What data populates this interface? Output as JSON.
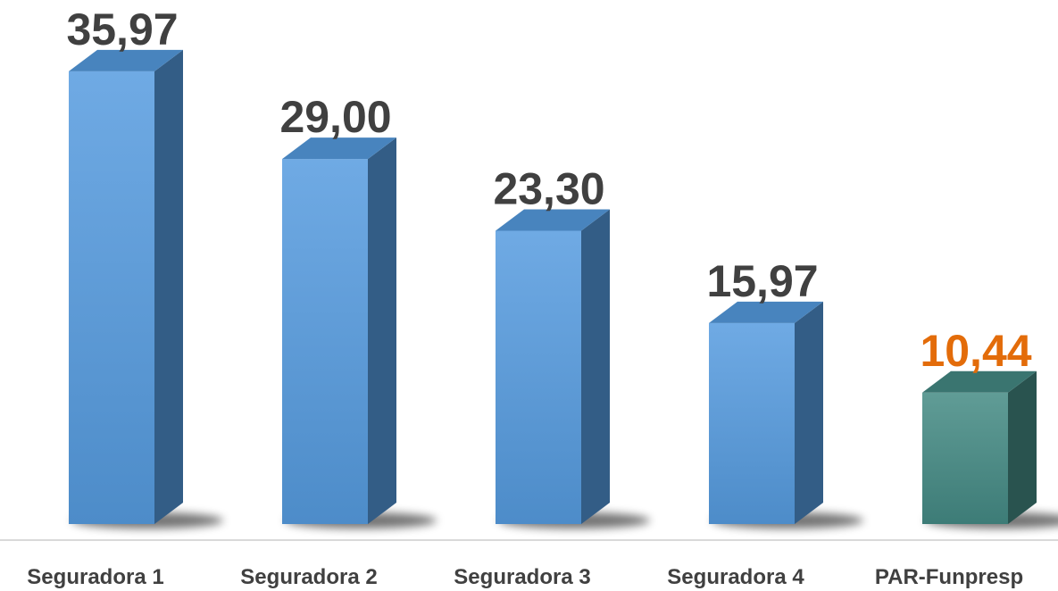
{
  "chart_data": {
    "type": "bar3d",
    "categories": [
      "Seguradora 1",
      "Seguradora 2",
      "Seguradora 3",
      "Seguradora 4",
      "PAR-Funpresp"
    ],
    "values": [
      35.97,
      29.0,
      23.3,
      15.97,
      10.44
    ],
    "value_labels": [
      "35,97",
      "29,00",
      "23,30",
      "15,97",
      "10,44"
    ],
    "colors": [
      "#559bdf",
      "#559bdf",
      "#559bdf",
      "#559bdf",
      "#448a84"
    ],
    "label_colors": [
      "#404040",
      "#404040",
      "#404040",
      "#404040",
      "#e36c0a"
    ]
  }
}
